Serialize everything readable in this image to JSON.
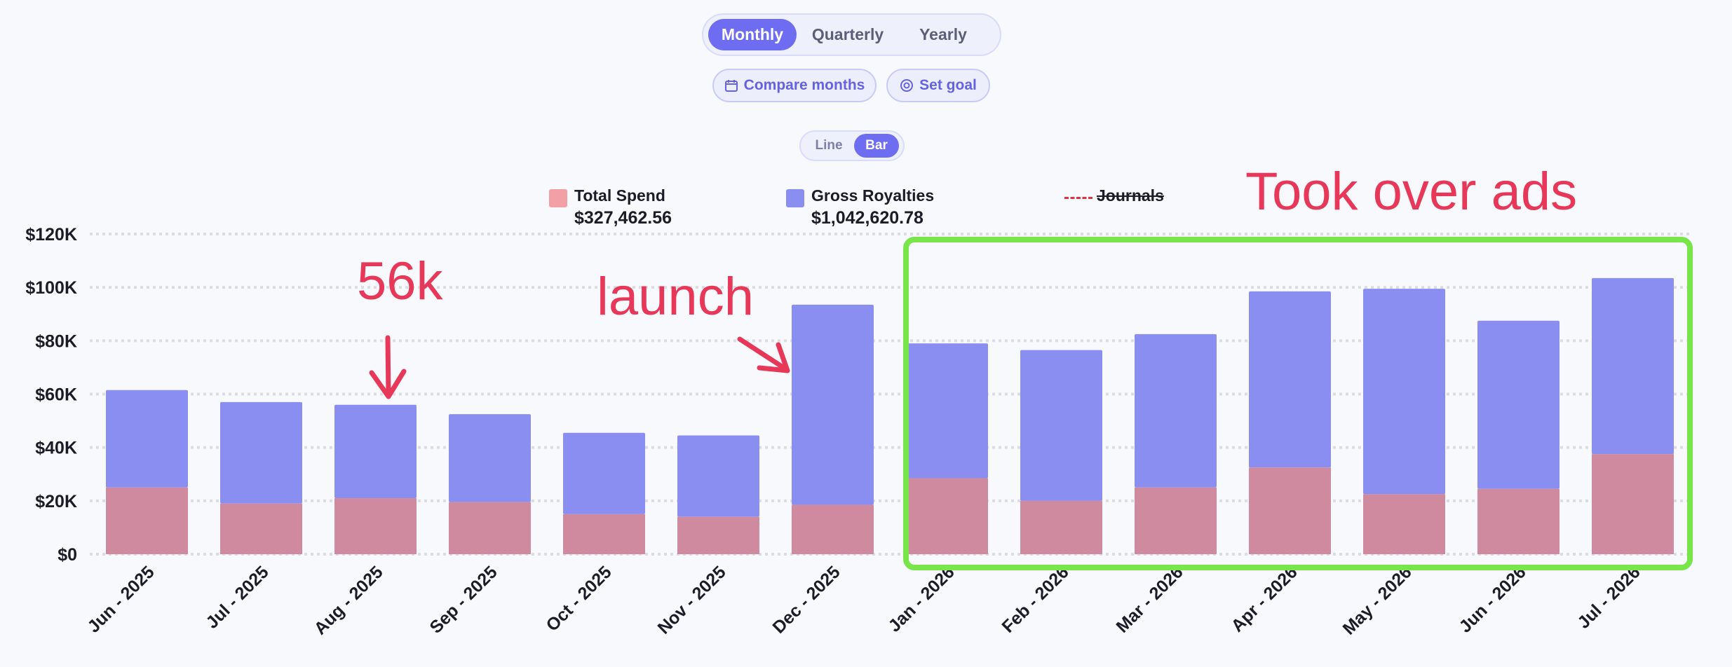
{
  "period_selector": {
    "options": [
      "Monthly",
      "Quarterly",
      "Yearly"
    ],
    "selected": "Monthly"
  },
  "actions": {
    "compare_label": "Compare months",
    "goal_label": "Set goal"
  },
  "chart_type_toggle": {
    "options": [
      "Line",
      "Bar"
    ],
    "selected": "Bar"
  },
  "legend": [
    {
      "name": "Total Spend",
      "total": "$327,462.56",
      "color": "#f2a0a6"
    },
    {
      "name": "Gross Royalties",
      "total": "$1,042,620.78",
      "color": "#8a8ef0"
    },
    {
      "name": "Journals",
      "color": "#e03440",
      "style": "dashed",
      "hidden": true
    }
  ],
  "annotations": {
    "aug_value": "56k",
    "launch": "launch",
    "took_over": "Took over ads"
  },
  "colors": {
    "accent": "#6e6cf0",
    "spend_bar": "#d08aa0",
    "royalties_bar": "#8a8ef0",
    "annotation": "#e8385a",
    "highlight": "#78e64b"
  },
  "chart_data": {
    "type": "bar",
    "stacked": true,
    "categories": [
      "Jun - 2025",
      "Jul - 2025",
      "Aug - 2025",
      "Sep - 2025",
      "Oct - 2025",
      "Nov - 2025",
      "Dec - 2025",
      "Jan - 2026",
      "Feb - 2026",
      "Mar - 2026",
      "Apr - 2026",
      "May - 2026",
      "Jun - 2026",
      "Jul - 2026"
    ],
    "series": [
      {
        "name": "Total Spend",
        "values": [
          25000,
          19000,
          21000,
          19500,
          15000,
          14000,
          18500,
          28500,
          20000,
          25000,
          32500,
          22500,
          24500,
          37500
        ]
      },
      {
        "name": "Gross Royalties",
        "values": [
          36500,
          38000,
          35000,
          33000,
          30500,
          30500,
          75000,
          50500,
          56500,
          57500,
          66000,
          77000,
          63000,
          66000
        ]
      }
    ],
    "ylim": [
      0,
      120000
    ],
    "yticks": [
      "$0",
      "$20K",
      "$40K",
      "$60K",
      "$80K",
      "$100K",
      "$120K"
    ],
    "ytick_values": [
      0,
      20000,
      40000,
      60000,
      80000,
      100000,
      120000
    ],
    "grid": true,
    "legend_position": "top"
  }
}
